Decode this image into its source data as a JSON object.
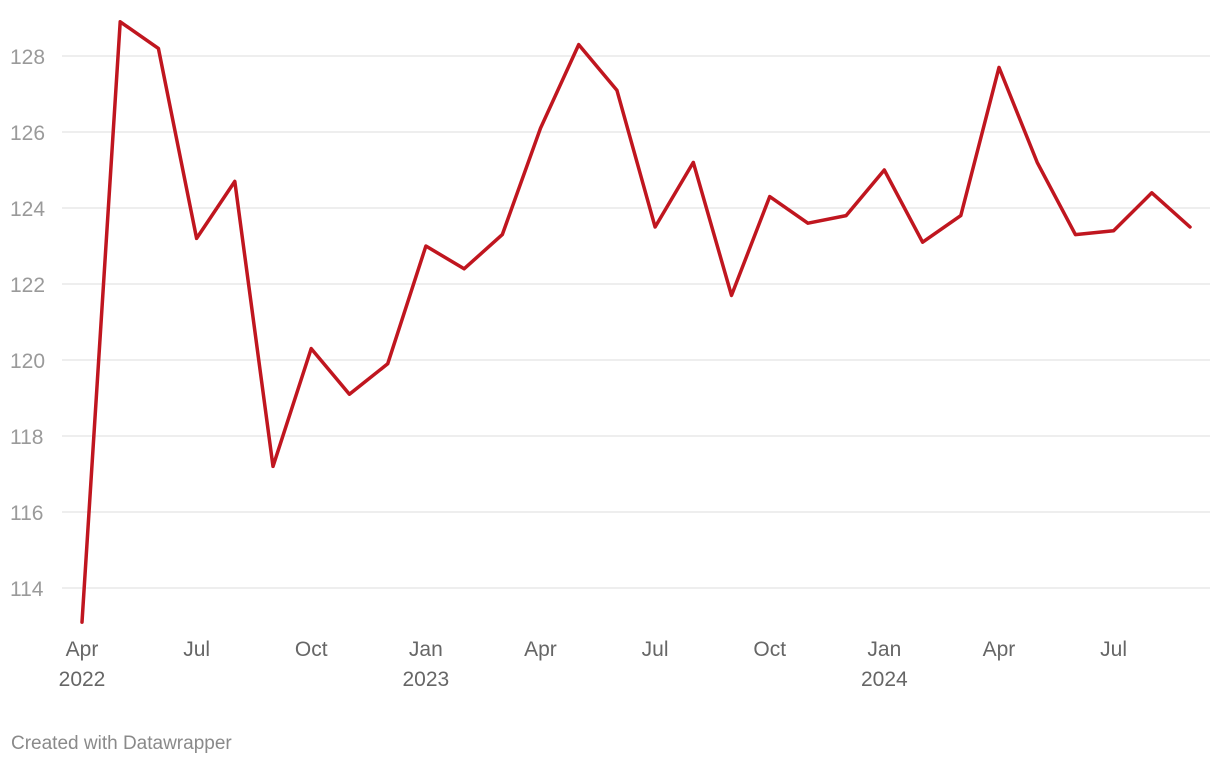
{
  "chart_data": {
    "type": "line",
    "title": "",
    "xlabel": "",
    "ylabel": "",
    "x": [
      "2022-04",
      "2022-05",
      "2022-06",
      "2022-07",
      "2022-08",
      "2022-09",
      "2022-10",
      "2022-11",
      "2022-12",
      "2023-01",
      "2023-02",
      "2023-03",
      "2023-04",
      "2023-05",
      "2023-06",
      "2023-07",
      "2023-08",
      "2023-09",
      "2023-10",
      "2023-11",
      "2023-12",
      "2024-01",
      "2024-02",
      "2024-03",
      "2024-04",
      "2024-05",
      "2024-06",
      "2024-07",
      "2024-08",
      "2024-09"
    ],
    "series": [
      {
        "color": "#c0161f",
        "values": [
          113.1,
          128.9,
          128.2,
          123.2,
          124.7,
          117.2,
          120.3,
          119.1,
          119.9,
          123.0,
          122.4,
          123.3,
          126.1,
          128.3,
          127.1,
          123.5,
          125.2,
          121.7,
          124.3,
          123.6,
          123.8,
          125.0,
          123.1,
          123.8,
          127.7,
          125.2,
          123.3,
          123.4,
          124.4,
          123.5
        ]
      }
    ],
    "ylim": [
      113,
      129
    ],
    "yticks": [
      114,
      116,
      118,
      120,
      122,
      124,
      126,
      128
    ],
    "xticks": [
      {
        "x": "2022-04",
        "label": "Apr",
        "year": "2022"
      },
      {
        "x": "2022-07",
        "label": "Jul",
        "year": ""
      },
      {
        "x": "2022-10",
        "label": "Oct",
        "year": ""
      },
      {
        "x": "2023-01",
        "label": "Jan",
        "year": "2023"
      },
      {
        "x": "2023-04",
        "label": "Apr",
        "year": ""
      },
      {
        "x": "2023-07",
        "label": "Jul",
        "year": ""
      },
      {
        "x": "2023-10",
        "label": "Oct",
        "year": ""
      },
      {
        "x": "2024-01",
        "label": "Jan",
        "year": "2024"
      },
      {
        "x": "2024-04",
        "label": "Apr",
        "year": ""
      },
      {
        "x": "2024-07",
        "label": "Jul",
        "year": ""
      }
    ],
    "grid": true,
    "legend": "none"
  },
  "colors": {
    "gridline": "#dcdcdc",
    "ytick_text": "#9a9a9a",
    "xtick_text": "#666666",
    "footer_text": "#8a8a8a"
  },
  "footer": {
    "credit": "Created with Datawrapper"
  }
}
